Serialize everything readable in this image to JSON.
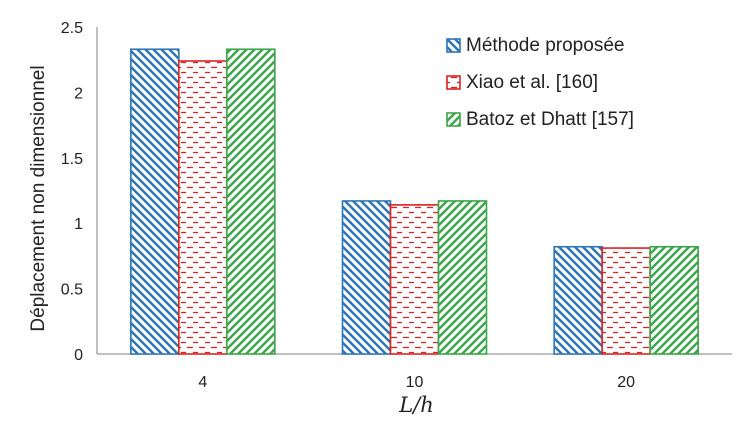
{
  "chart_data": {
    "type": "bar",
    "categories": [
      "4",
      "10",
      "20"
    ],
    "series": [
      {
        "name": "Méthode proposée",
        "values": [
          2.33,
          1.17,
          0.82
        ],
        "color": "#2e75b6",
        "pattern": "diag-back"
      },
      {
        "name": "Xiao et al. [160]",
        "values": [
          2.24,
          1.14,
          0.81
        ],
        "color": "#e02020",
        "pattern": "dashed-horizontal"
      },
      {
        "name": "Batoz et Dhatt [157]",
        "values": [
          2.33,
          1.17,
          0.82
        ],
        "color": "#3aa64a",
        "pattern": "diag-forward"
      }
    ],
    "title": "",
    "xlabel": "L/h",
    "ylabel": "Déplacement non dimensionnel",
    "ylim": [
      0,
      2.5
    ],
    "yticks": [
      "0",
      "0.5",
      "1",
      "1.5",
      "2",
      "2.5"
    ],
    "grid": false,
    "legend_position": "top-right"
  }
}
